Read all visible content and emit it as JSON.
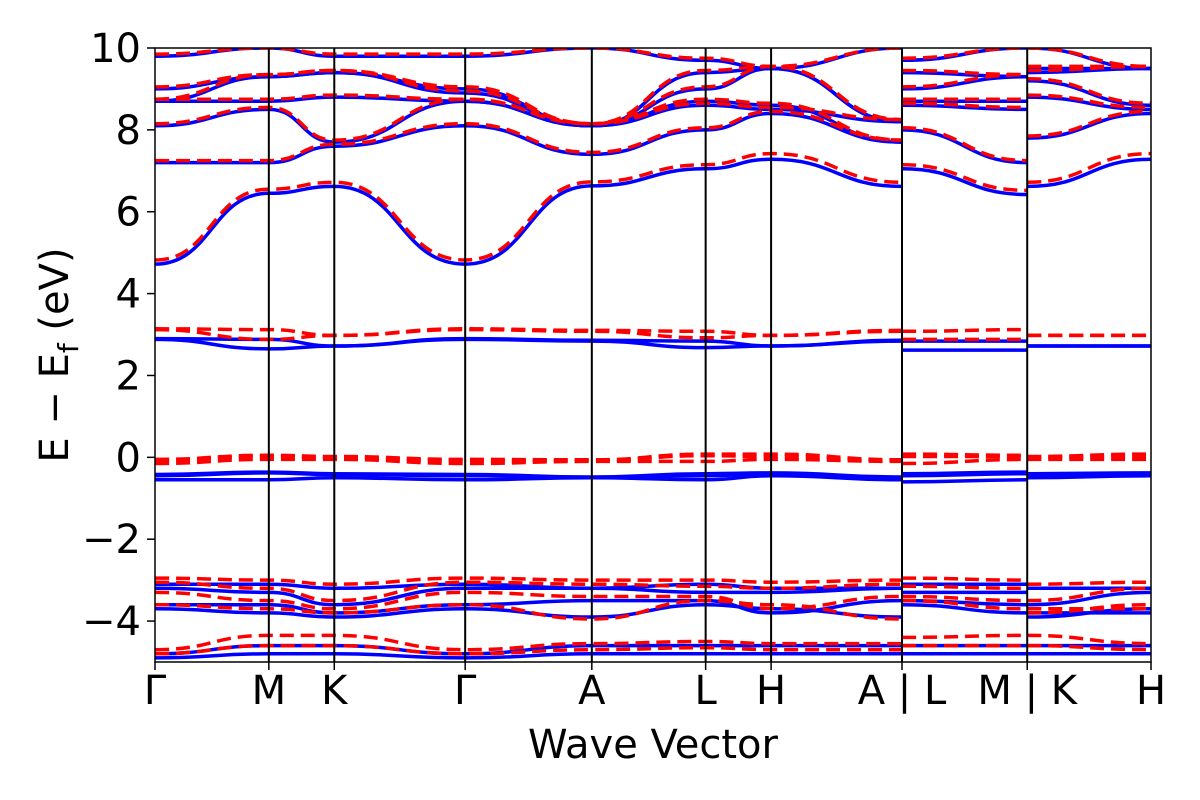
{
  "chart_data": {
    "type": "line",
    "title": "",
    "xlabel": "Wave Vector",
    "ylabel_main": "E − E",
    "ylabel_sub": "f",
    "ylabel_suffix": " (eV)",
    "ylim": [
      -5,
      10
    ],
    "yticks": [
      -4,
      -2,
      0,
      2,
      4,
      6,
      8,
      10
    ],
    "ytick_labels": [
      "−4",
      "−2",
      "0",
      "2",
      "4",
      "6",
      "8",
      "10"
    ],
    "xlim": [
      0,
      7.0
    ],
    "segments": [
      {
        "labels": [
          "Γ",
          "M",
          "K",
          "Γ",
          "A",
          "L",
          "H",
          "A"
        ],
        "x": [
          0,
          0.8,
          1.26,
          2.18,
          3.07,
          3.87,
          4.33,
          5.25
        ]
      },
      {
        "labels": [
          "L",
          "M"
        ],
        "x": [
          5.25,
          6.13
        ]
      },
      {
        "labels": [
          "K",
          "H"
        ],
        "x": [
          6.13,
          7.0
        ]
      }
    ],
    "xtick_labels": [
      {
        "x": 0,
        "text": "Γ"
      },
      {
        "x": 0.8,
        "text": "M"
      },
      {
        "x": 1.26,
        "text": "K"
      },
      {
        "x": 2.18,
        "text": "Γ"
      },
      {
        "x": 3.07,
        "text": "A"
      },
      {
        "x": 3.87,
        "text": "L"
      },
      {
        "x": 4.33,
        "text": "H"
      },
      {
        "x": 5.25,
        "text": "A | L"
      },
      {
        "x": 6.13,
        "text": "M | K"
      },
      {
        "x": 7.0,
        "text": "H"
      }
    ],
    "series": [
      {
        "color": "#0000ff",
        "style": "solid",
        "bands": [
          [
            4.72,
            6.45,
            6.62,
            4.72,
            6.63,
            7.05,
            7.28,
            6.62,
            7.05,
            6.42,
            6.62,
            7.28
          ],
          [
            7.2,
            7.2,
            7.6,
            8.1,
            7.4,
            8.0,
            8.4,
            7.7,
            8.0,
            7.2,
            7.8,
            8.4
          ],
          [
            8.1,
            8.5,
            7.7,
            8.7,
            8.1,
            8.6,
            8.5,
            8.2,
            8.6,
            8.5,
            8.8,
            8.5
          ],
          [
            8.7,
            8.7,
            8.8,
            8.7,
            8.1,
            8.7,
            8.6,
            7.7,
            8.7,
            8.7,
            9.2,
            8.6
          ],
          [
            8.7,
            9.3,
            9.4,
            9.0,
            8.1,
            9.0,
            9.5,
            8.2,
            9.0,
            9.3,
            9.4,
            9.5
          ],
          [
            9.0,
            9.3,
            9.4,
            8.9,
            8.1,
            9.4,
            9.5,
            8.2,
            9.4,
            9.3,
            9.5,
            9.5
          ],
          [
            9.8,
            10.0,
            9.8,
            9.8,
            10.0,
            9.7,
            9.5,
            10.0,
            9.7,
            10.0,
            10.0,
            9.5
          ],
          [
            2.88,
            2.65,
            2.72,
            2.88,
            2.84,
            2.68,
            2.72,
            2.84,
            2.62,
            2.62,
            2.72,
            2.72
          ],
          [
            2.9,
            2.88,
            2.72,
            2.9,
            2.86,
            2.84,
            2.72,
            2.86,
            2.84,
            2.84,
            2.72,
            2.72
          ],
          [
            -0.55,
            -0.55,
            -0.5,
            -0.55,
            -0.5,
            -0.55,
            -0.45,
            -0.55,
            -0.6,
            -0.55,
            -0.5,
            -0.45
          ],
          [
            -0.45,
            -0.38,
            -0.42,
            -0.45,
            -0.5,
            -0.45,
            -0.4,
            -0.5,
            -0.45,
            -0.4,
            -0.42,
            -0.4
          ],
          [
            -0.42,
            -0.36,
            -0.4,
            -0.42,
            -0.48,
            -0.4,
            -0.38,
            -0.48,
            -0.4,
            -0.36,
            -0.4,
            -0.38
          ],
          [
            -3.1,
            -3.1,
            -3.2,
            -3.1,
            -3.2,
            -3.1,
            -3.2,
            -3.2,
            -3.1,
            -3.1,
            -3.2,
            -3.2
          ],
          [
            -3.2,
            -3.3,
            -3.6,
            -3.2,
            -3.2,
            -3.3,
            -3.3,
            -3.2,
            -3.3,
            -3.3,
            -3.6,
            -3.3
          ],
          [
            -3.6,
            -3.6,
            -3.8,
            -3.6,
            -3.5,
            -3.5,
            -3.8,
            -3.5,
            -3.5,
            -3.6,
            -3.8,
            -3.8
          ],
          [
            -3.7,
            -3.8,
            -3.9,
            -3.7,
            -3.9,
            -3.6,
            -3.7,
            -3.9,
            -3.6,
            -3.8,
            -3.9,
            -3.7
          ],
          [
            -4.8,
            -4.6,
            -4.6,
            -4.8,
            -4.6,
            -4.6,
            -4.6,
            -4.6,
            -4.6,
            -4.6,
            -4.6,
            -4.6
          ],
          [
            -4.9,
            -4.8,
            -4.8,
            -4.9,
            -4.8,
            -4.8,
            -4.8,
            -4.8,
            -4.8,
            -4.8,
            -4.8,
            -4.8
          ]
        ]
      },
      {
        "color": "#ff0000",
        "style": "dashed",
        "bands": [
          [
            4.82,
            6.55,
            6.72,
            4.82,
            6.73,
            7.15,
            7.42,
            6.72,
            7.15,
            6.52,
            6.72,
            7.42
          ],
          [
            7.25,
            7.25,
            7.65,
            8.15,
            7.45,
            8.05,
            8.45,
            7.75,
            8.05,
            7.25,
            7.85,
            8.45
          ],
          [
            8.15,
            8.55,
            7.75,
            8.75,
            8.15,
            8.65,
            8.55,
            8.25,
            8.65,
            8.55,
            8.85,
            8.55
          ],
          [
            8.75,
            8.75,
            8.85,
            8.75,
            8.15,
            8.75,
            8.65,
            7.75,
            8.75,
            8.75,
            9.25,
            8.65
          ],
          [
            8.75,
            9.35,
            9.45,
            9.05,
            8.15,
            9.05,
            9.55,
            8.25,
            9.05,
            9.35,
            9.45,
            9.55
          ],
          [
            9.05,
            9.35,
            9.45,
            8.95,
            8.15,
            9.45,
            9.55,
            8.25,
            9.45,
            9.35,
            9.55,
            9.55
          ],
          [
            9.85,
            10.0,
            9.85,
            9.85,
            10.0,
            9.75,
            9.55,
            10.0,
            9.75,
            10.0,
            10.0,
            9.55
          ],
          [
            3.12,
            2.88,
            2.98,
            3.12,
            3.08,
            2.92,
            2.98,
            3.08,
            2.88,
            2.88,
            2.98,
            2.98
          ],
          [
            3.14,
            3.12,
            2.98,
            3.14,
            3.1,
            3.08,
            2.98,
            3.1,
            3.08,
            3.12,
            2.98,
            2.98
          ],
          [
            -0.15,
            -0.05,
            -0.05,
            -0.15,
            -0.1,
            -0.1,
            -0.05,
            -0.1,
            -0.15,
            -0.05,
            -0.05,
            -0.05
          ],
          [
            -0.08,
            0.02,
            0.0,
            -0.08,
            -0.08,
            0.04,
            0.02,
            -0.08,
            0.02,
            0.02,
            0.0,
            0.02
          ],
          [
            -0.05,
            0.05,
            0.02,
            -0.05,
            -0.06,
            0.08,
            0.08,
            -0.06,
            0.08,
            0.05,
            0.02,
            0.08
          ],
          [
            -2.95,
            -3.0,
            -3.1,
            -2.95,
            -3.0,
            -3.0,
            -3.05,
            -3.0,
            -2.95,
            -3.0,
            -3.1,
            -3.05
          ],
          [
            -3.05,
            -3.2,
            -3.5,
            -3.05,
            -3.1,
            -3.15,
            -3.2,
            -3.1,
            -3.15,
            -3.2,
            -3.5,
            -3.2
          ],
          [
            -3.3,
            -3.5,
            -3.7,
            -3.3,
            -3.4,
            -3.4,
            -3.7,
            -3.4,
            -3.4,
            -3.5,
            -3.7,
            -3.7
          ],
          [
            -3.6,
            -3.7,
            -3.8,
            -3.6,
            -3.95,
            -3.5,
            -3.6,
            -3.95,
            -3.5,
            -3.7,
            -3.8,
            -3.6
          ],
          [
            -4.7,
            -4.35,
            -4.35,
            -4.7,
            -4.55,
            -4.5,
            -4.55,
            -4.55,
            -4.4,
            -4.35,
            -4.35,
            -4.55
          ],
          [
            -4.8,
            -4.6,
            -4.6,
            -4.8,
            -4.7,
            -4.65,
            -4.7,
            -4.7,
            -4.6,
            -4.6,
            -4.6,
            -4.7
          ]
        ]
      }
    ]
  }
}
